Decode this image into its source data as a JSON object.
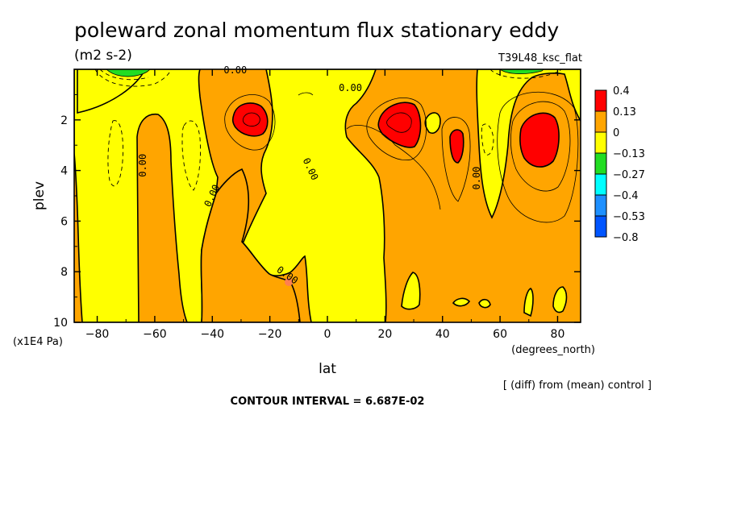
{
  "title": "poleward zonal momentum flux stationary eddy",
  "units": "(m2 s-2)",
  "experiment": "T39L48_ksc_flat",
  "note": "[ (diff) from (mean) control ]",
  "contour_interval": "CONTOUR INTERVAL = 6.687E-02",
  "chart_data": {
    "type": "heatmap",
    "xlabel": "lat",
    "x_units": "(degrees_north)",
    "ylabel": "plev",
    "y_units": "(x1E4 Pa)",
    "xlim": [
      -88,
      88
    ],
    "ylim": [
      10,
      0
    ],
    "x_ticks": [
      -80,
      -60,
      -40,
      -20,
      0,
      20,
      40,
      60,
      80
    ],
    "x_tick_labels": [
      "−80",
      "−60",
      "−40",
      "−20",
      "0",
      "20",
      "40",
      "60",
      "80"
    ],
    "y_ticks": [
      2,
      4,
      6,
      8,
      10
    ],
    "y_tick_labels": [
      "2",
      "4",
      "6",
      "8",
      "10"
    ],
    "legend": {
      "placement": "right",
      "labels": [
        "0.4",
        "0.13",
        "0",
        "−0.13",
        "−0.27",
        "−0.4",
        "−0.53",
        "−0.8"
      ],
      "colors": [
        "#ff0000",
        "#ffa500",
        "#ffff00",
        "#22dd22",
        "#00ffff",
        "#1e90ff",
        "#0055ff"
      ]
    },
    "contour_labels": [
      {
        "text": "0.00",
        "lat": -32,
        "p": 0.05,
        "rotate": 0
      },
      {
        "text": "0.00",
        "lat": 8,
        "p": 0.75,
        "rotate": 0
      },
      {
        "text": "0.00",
        "lat": -64,
        "p": 3.8,
        "rotate": -90
      },
      {
        "text": "0.00",
        "lat": -40,
        "p": 5.0,
        "rotate": -65
      },
      {
        "text": "0.00",
        "lat": -6,
        "p": 3.95,
        "rotate": 65
      },
      {
        "text": "0.00",
        "lat": 52,
        "p": 4.3,
        "rotate": -90
      },
      {
        "text": "0.00",
        "lat": -14,
        "p": 8.15,
        "rotate": 35
      }
    ]
  }
}
